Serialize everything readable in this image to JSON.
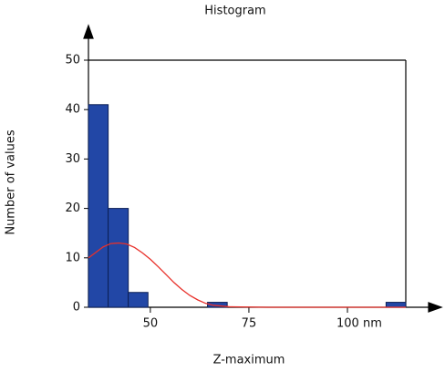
{
  "chart_data": {
    "type": "histogram",
    "title": "Histogram",
    "x_label": "Z-maximum",
    "y_label": "Number of values",
    "bins": [
      34.3,
      39.3,
      44.4,
      49.4,
      54.4,
      59.5,
      64.5,
      69.5,
      74.6,
      79.6,
      84.6,
      89.7,
      94.7,
      99.7,
      104.7,
      109.8,
      114.8
    ],
    "values": [
      41,
      20,
      3,
      0,
      0,
      0,
      1,
      0,
      0,
      0,
      0,
      0,
      0,
      0,
      0,
      1
    ],
    "color": "#2247a6",
    "curve": {
      "color": "#e8302a",
      "x": [
        34.3,
        36,
        38,
        40,
        42,
        44,
        46,
        48,
        50,
        52,
        54,
        56,
        58,
        60,
        62,
        64,
        66,
        70,
        80,
        90,
        100,
        110,
        114.8
      ],
      "values": [
        10,
        11,
        12.2,
        12.9,
        13,
        12.8,
        12.1,
        11,
        9.7,
        8.2,
        6.6,
        5,
        3.6,
        2.4,
        1.5,
        0.8,
        0.4,
        0.1,
        0,
        0,
        0,
        0,
        0
      ]
    },
    "xlim": [
      34.3,
      114.8
    ],
    "xticks": [
      50,
      75,
      {
        "value": 100,
        "label": "100 nm"
      }
    ],
    "ylim": [
      0,
      50
    ],
    "yticks": [
      0,
      10,
      20,
      30,
      40,
      50
    ]
  }
}
